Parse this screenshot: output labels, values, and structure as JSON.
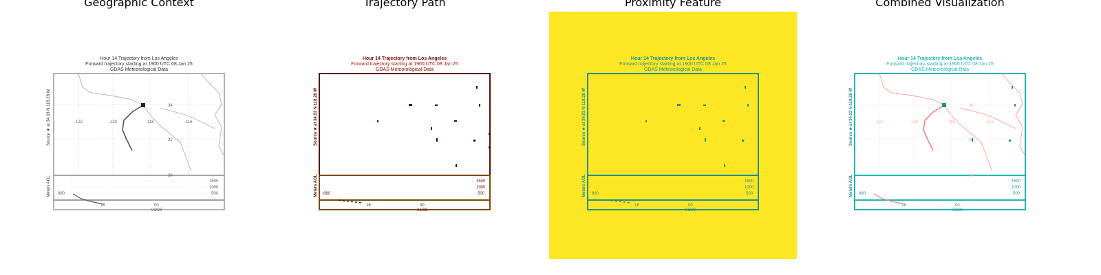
{
  "panels": [
    {
      "title": "Geographic Context"
    },
    {
      "title": "Trajectory Path"
    },
    {
      "title": "Proximity Feature"
    },
    {
      "title": "Combined Visualization"
    }
  ],
  "hysplit": {
    "title_line1": "Hour 14 Trajectory from Los Angeles",
    "title_line2": "Forward trajectory starting at 1900 UTC 08 Jan 25",
    "title_line3": "GDAS Meteorological Data",
    "left_axis_label": "Source ★ at 34.03 N 118.28 W",
    "height_axis_label": "Meters AGL",
    "lon_labels": [
      "-122",
      "-120",
      "-118",
      "-116"
    ],
    "lat_labels": [
      "34",
      "32",
      "30"
    ],
    "height_ticks": [
      "1500",
      "1000",
      "500"
    ],
    "start_height": "680",
    "time_ticks": [
      "18",
      "00"
    ],
    "time_date": "01/09"
  },
  "colors": {
    "panel1_line": "#808080",
    "panel1_frame": "#9a9a9a",
    "panel2_line": "#4a0000",
    "panel2_frame": "#7a4a00",
    "panel3_bg": "#fde725",
    "panel3_line": "#21918c",
    "panel4_line": "#21b5b5",
    "panel4_map": "#ff9c9c"
  }
}
